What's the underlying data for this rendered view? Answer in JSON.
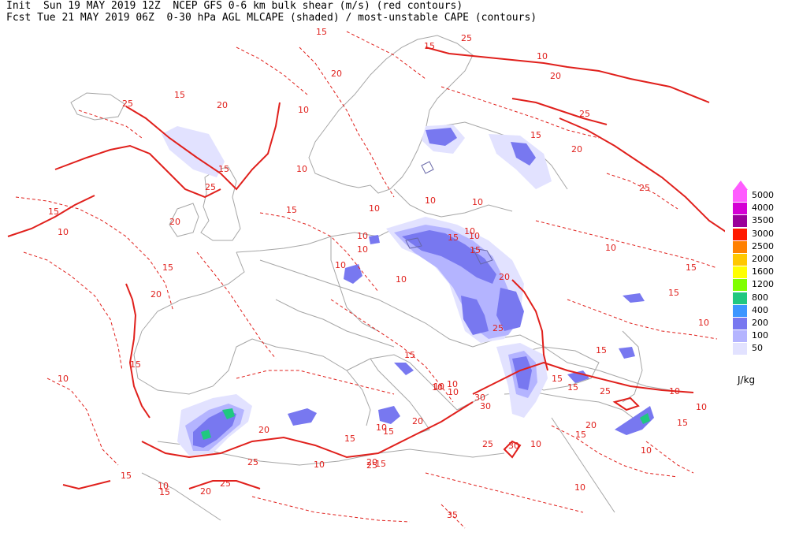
{
  "header": {
    "line1": "Init  Sun 19 MAY 2019 12Z  NCEP GFS 0-6 km bulk shear (m/s) (red contours)",
    "line2": "Fcst Tue 21 MAY 2019 06Z  0-30 hPa AGL MLCAPE (shaded) / most-unstable CAPE (contours)"
  },
  "legend": {
    "levels": [
      {
        "value": "5000",
        "color": "#ff5cff"
      },
      {
        "value": "4000",
        "color": "#d400d4"
      },
      {
        "value": "3500",
        "color": "#9a009a"
      },
      {
        "value": "3000",
        "color": "#ff1a00"
      },
      {
        "value": "2500",
        "color": "#ff8000"
      },
      {
        "value": "2000",
        "color": "#ffc800"
      },
      {
        "value": "1600",
        "color": "#ffff00"
      },
      {
        "value": "1200",
        "color": "#80ff00"
      },
      {
        "value": "800",
        "color": "#20c880"
      },
      {
        "value": "400",
        "color": "#3c96ff"
      },
      {
        "value": "200",
        "color": "#7878f0"
      },
      {
        "value": "100",
        "color": "#b4b4ff"
      },
      {
        "value": "50",
        "color": "#e2e2ff"
      }
    ],
    "unit": "J/kg"
  },
  "contour_labels": [
    "15",
    "25",
    "20",
    "15",
    "10",
    "20",
    "25",
    "15",
    "20",
    "25",
    "15",
    "10",
    "20",
    "25",
    "10",
    "15",
    "20",
    "10",
    "25",
    "10",
    "10",
    "15",
    "10",
    "15",
    "10",
    "15",
    "10",
    "10",
    "10",
    "15",
    "20",
    "10",
    "10",
    "15",
    "20",
    "15",
    "25",
    "10",
    "15",
    "15",
    "10",
    "10",
    "15",
    "30",
    "10",
    "10",
    "15",
    "25",
    "10",
    "10",
    "15",
    "30",
    "10",
    "10",
    "20",
    "15",
    "15",
    "20",
    "25",
    "25",
    "20",
    "35",
    "15",
    "10",
    "10",
    "15",
    "15",
    "10",
    "30",
    "25",
    "10",
    "15",
    "10",
    "15",
    "10",
    "20",
    "25",
    "15",
    "20",
    "15"
  ]
}
